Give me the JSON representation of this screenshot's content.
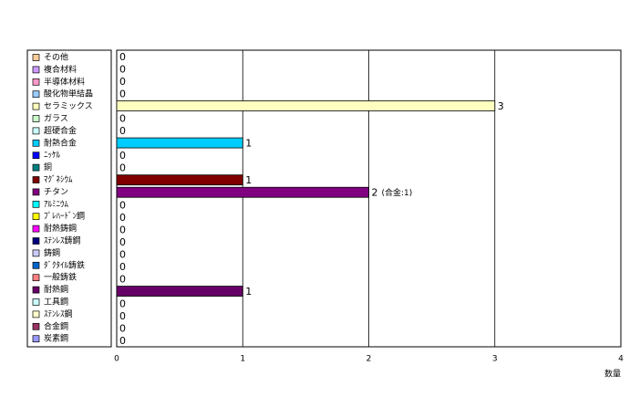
{
  "chart_data": {
    "type": "bar",
    "orientation": "horizontal",
    "categories": [
      "その他",
      "複合材料",
      "半導体材料",
      "酸化物単結晶",
      "セラミックス",
      "ガラス",
      "超硬合金",
      "耐熱合金",
      "ﾆｯｹﾙ",
      "銅",
      "ﾏｸﾞﾈｼｳﾑ",
      "チタン",
      "ｱﾙﾐﾆｳﾑ",
      "ﾌﾟﾚﾊｰﾄﾞﾝ鋼",
      "耐熱鋳鋼",
      "ｽﾃﾝﾚｽ鋳鋼",
      "鋳鋼",
      "ﾀﾞｸﾀｲﾙ鋳鉄",
      "一般鋳鉄",
      "耐熱鋼",
      "工具鋼",
      "ｽﾃﾝﾚｽ鋼",
      "合金鋼",
      "炭素鋼"
    ],
    "values": [
      0,
      0,
      0,
      0,
      3,
      0,
      0,
      1,
      0,
      0,
      1,
      2,
      0,
      0,
      0,
      0,
      0,
      0,
      0,
      1,
      0,
      0,
      0,
      0
    ],
    "colors": [
      "#ffcc99",
      "#cc99ff",
      "#ff99cc",
      "#99ccff",
      "#ffffc0",
      "#ccffcc",
      "#ccffff",
      "#00ccff",
      "#0000ff",
      "#008080",
      "#800000",
      "#800080",
      "#00ffff",
      "#ffff00",
      "#ff00ff",
      "#000080",
      "#ccccff",
      "#0066cc",
      "#ff8080",
      "#660066",
      "#ccffff",
      "#ffffcc",
      "#993366",
      "#9999ff"
    ],
    "annotation": "(合金:1)",
    "xlabel": "数量",
    "xlim": [
      0,
      4
    ],
    "xticks": [
      0,
      1,
      2,
      3,
      4
    ],
    "grid": true,
    "legend": "left"
  }
}
